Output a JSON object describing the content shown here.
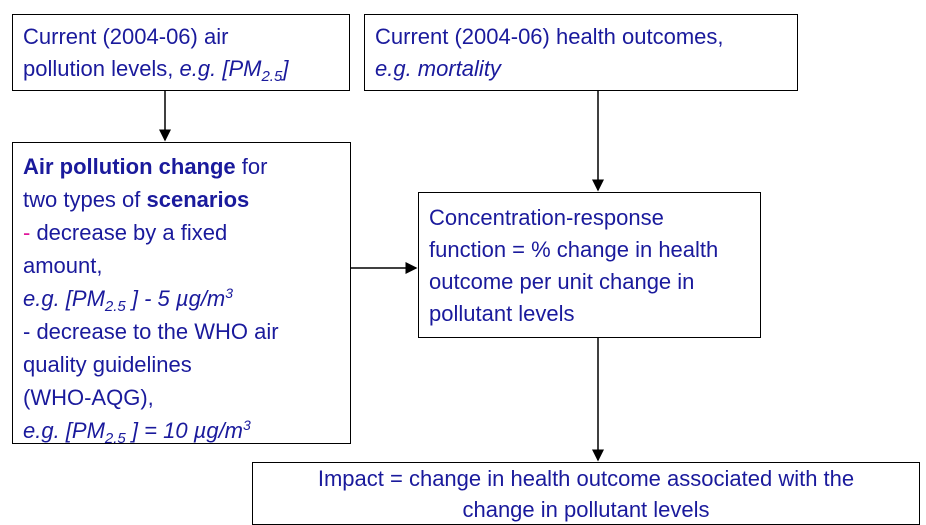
{
  "nodes": [
    {
      "lines": [
        [
          "Current (2004-06) air"
        ],
        [
          "pollution levels, ",
          "e.g. [PM",
          "2.5",
          "]"
        ]
      ]
    },
    {
      "lines": [
        [
          "Current (2004-06) health outcomes,"
        ],
        [
          "e.g. mortality"
        ]
      ]
    },
    {
      "lines": [
        [
          "Air pollution change",
          " for"
        ],
        [
          "two types of ",
          "scenarios"
        ],
        [
          "-",
          " decrease by a fixed"
        ],
        [
          "amount,"
        ],
        [
          "e.g. [PM",
          "2.5",
          " ] - 5 µg/m",
          "3"
        ],
        [
          "- decrease to the WHO air"
        ],
        [
          "quality guidelines"
        ],
        [
          "(WHO-AQG),"
        ],
        [
          "e.g. [PM",
          "2.5",
          " ] = 10 µg/m",
          "3"
        ]
      ]
    },
    {
      "lines": [
        [
          "Concentration-response"
        ],
        [
          "function = % change in health"
        ],
        [
          "outcome per unit change in"
        ],
        [
          "pollutant levels"
        ]
      ]
    },
    {
      "lines": [
        [
          "Impact = change in health outcome associated with the"
        ],
        [
          "change in pollutant levels"
        ]
      ]
    }
  ]
}
